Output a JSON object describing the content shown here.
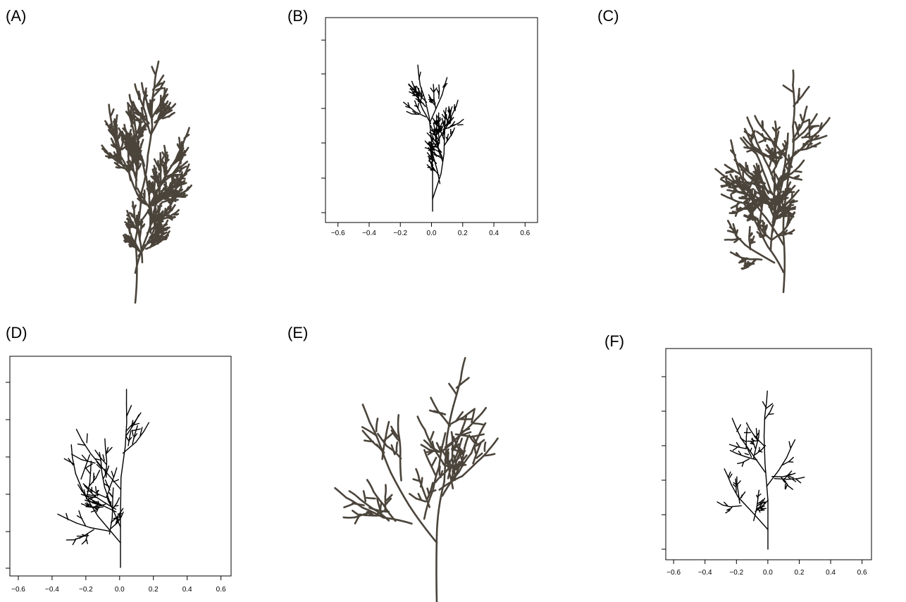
{
  "panels": [
    {
      "label": "(A)"
    },
    {
      "label": "(B)",
      "xlim": [
        -0.68,
        0.68
      ],
      "xticks": [
        {
          "value": -0.6,
          "label": "−0.6"
        },
        {
          "value": -0.4,
          "label": "−0.4"
        },
        {
          "value": -0.2,
          "label": "−0.2"
        },
        {
          "value": 0,
          "label": "0.0"
        },
        0.2,
        0.4,
        0.6
      ]
    },
    {
      "label": "(C)"
    },
    {
      "label": "(D)",
      "xlim": [
        -0.65,
        0.66
      ],
      "xticks": [
        {
          "value": -0.6,
          "label": "−0.6"
        },
        {
          "value": -0.4,
          "label": "−0.4"
        },
        {
          "value": -0.2,
          "label": "−0.2"
        },
        {
          "value": 0,
          "label": "0.0"
        },
        0.2,
        0.4,
        0.6
      ]
    },
    {
      "label": "(E)"
    },
    {
      "label": "(F)",
      "xlim": [
        -0.65,
        0.66
      ],
      "xticks": [
        {
          "value": -0.6,
          "label": "−0.6"
        },
        {
          "value": -0.4,
          "label": "−0.4"
        },
        {
          "value": -0.2,
          "label": "−0.2"
        },
        {
          "value": 0,
          "label": "0.0"
        },
        0.2,
        0.4,
        0.6
      ]
    }
  ]
}
